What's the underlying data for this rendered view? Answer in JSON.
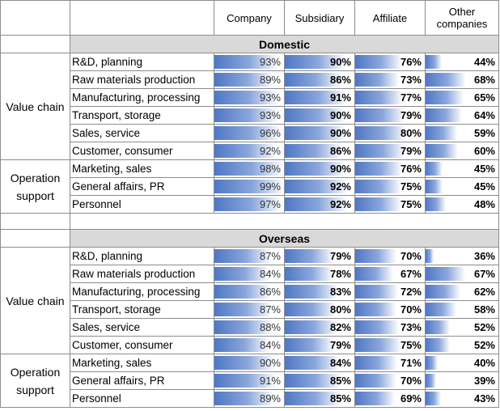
{
  "chart_data": {
    "type": "table",
    "columns": [
      "Company",
      "Subsidiary",
      "Affiliate",
      "Other companies"
    ],
    "sections": [
      {
        "name": "Domestic",
        "groups": [
          {
            "name": "Value chain",
            "rows": [
              {
                "label": "R&D, planning",
                "values": [
                  93,
                  90,
                  76,
                  44
                ]
              },
              {
                "label": "Raw materials production",
                "values": [
                  89,
                  86,
                  73,
                  68
                ]
              },
              {
                "label": "Manufacturing, processing",
                "values": [
                  93,
                  91,
                  77,
                  65
                ]
              },
              {
                "label": "Transport, storage",
                "values": [
                  93,
                  90,
                  79,
                  64
                ]
              },
              {
                "label": "Sales, service",
                "values": [
                  96,
                  90,
                  80,
                  59
                ]
              },
              {
                "label": "Customer, consumer",
                "values": [
                  92,
                  86,
                  79,
                  60
                ]
              }
            ]
          },
          {
            "name": "Operation support",
            "rows": [
              {
                "label": "Marketing, sales",
                "values": [
                  98,
                  90,
                  76,
                  45
                ]
              },
              {
                "label": "General affairs, PR",
                "values": [
                  99,
                  92,
                  75,
                  45
                ]
              },
              {
                "label": "Personnel",
                "values": [
                  97,
                  92,
                  75,
                  48
                ]
              }
            ]
          }
        ]
      },
      {
        "name": "Overseas",
        "groups": [
          {
            "name": "Value chain",
            "rows": [
              {
                "label": "R&D, planning",
                "values": [
                  87,
                  79,
                  70,
                  36
                ]
              },
              {
                "label": "Raw materials production",
                "values": [
                  84,
                  78,
                  67,
                  67
                ]
              },
              {
                "label": "Manufacturing, processing",
                "values": [
                  86,
                  83,
                  72,
                  62
                ]
              },
              {
                "label": "Transport, storage",
                "values": [
                  87,
                  80,
                  70,
                  58
                ]
              },
              {
                "label": "Sales, service",
                "values": [
                  88,
                  82,
                  73,
                  52
                ]
              },
              {
                "label": "Customer, consumer",
                "values": [
                  84,
                  79,
                  75,
                  52
                ]
              }
            ]
          },
          {
            "name": "Operation support",
            "rows": [
              {
                "label": "Marketing, sales",
                "values": [
                  90,
                  84,
                  71,
                  40
                ]
              },
              {
                "label": "General affairs, PR",
                "values": [
                  91,
                  85,
                  70,
                  39
                ]
              },
              {
                "label": "Personnel",
                "values": [
                  89,
                  85,
                  69,
                  43
                ]
              }
            ]
          }
        ]
      }
    ],
    "value_suffix": "%",
    "bar_color": "#4f77c4"
  }
}
